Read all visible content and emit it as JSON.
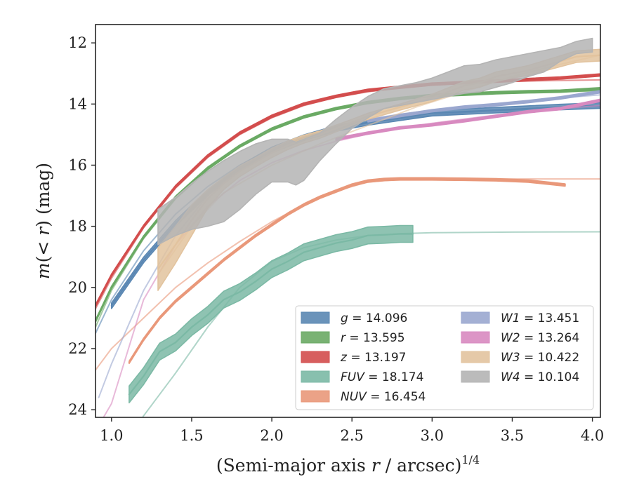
{
  "chart_data": {
    "type": "line",
    "xlabel": "(Semi-major axis r / arcsec)",
    "xlabel_exponent": "1/4",
    "ylabel": "m(< r) (mag)",
    "xlim": [
      0.9,
      4.05
    ],
    "ylim": [
      24.25,
      11.4
    ],
    "y_inverted": true,
    "xticks": [
      "1.0",
      "1.5",
      "2.0",
      "2.5",
      "3.0",
      "3.5",
      "4.0"
    ],
    "yticks": [
      "12",
      "14",
      "16",
      "18",
      "20",
      "22",
      "24"
    ],
    "grid": false,
    "legend_position": "lower-right",
    "legend_columns": 2,
    "series": [
      {
        "key": "g",
        "label": "g = 14.096",
        "color": "#5a87b3",
        "model": {
          "x": [
            0.9,
            1.0,
            1.2,
            1.4,
            1.6,
            1.8,
            2.0,
            2.2,
            2.4,
            2.6,
            2.8,
            3.0,
            3.2,
            3.4,
            3.6,
            3.8,
            4.05
          ],
          "y": [
            21.5,
            20.4,
            18.8,
            17.6,
            16.7,
            16.0,
            15.45,
            15.1,
            14.82,
            14.62,
            14.48,
            14.37,
            14.28,
            14.22,
            14.17,
            14.12,
            14.08
          ]
        },
        "data": {
          "x": [
            1.0,
            1.2,
            1.4,
            1.6,
            1.8,
            2.0,
            2.2,
            2.4,
            2.6,
            2.8,
            3.0,
            3.2,
            3.4,
            3.6,
            3.8,
            4.05
          ],
          "y": [
            20.6,
            19.1,
            17.9,
            16.9,
            16.1,
            15.5,
            15.1,
            14.8,
            14.6,
            14.45,
            14.3,
            14.25,
            14.2,
            14.15,
            14.1,
            14.05
          ],
          "band": 0.18
        }
      },
      {
        "key": "r",
        "label": "r = 13.595",
        "color": "#6aaa64",
        "model": {
          "x": [
            0.9,
            1.0,
            1.2,
            1.4,
            1.6,
            1.8,
            2.0,
            2.2,
            2.4,
            2.6,
            2.8,
            3.0,
            3.2,
            3.4,
            3.6,
            3.8,
            4.05
          ],
          "y": [
            21.3,
            20.1,
            18.4,
            17.1,
            16.15,
            15.4,
            14.85,
            14.45,
            14.17,
            13.97,
            13.83,
            13.73,
            13.66,
            13.62,
            13.6,
            13.59,
            13.58
          ]
        },
        "data": {
          "x": [
            0.9,
            1.0,
            1.2,
            1.4,
            1.6,
            1.8,
            2.0,
            2.2,
            2.4,
            2.6,
            2.8,
            3.0,
            3.2,
            3.4,
            3.6,
            3.8,
            4.05
          ],
          "y": [
            21.1,
            20.0,
            18.35,
            17.05,
            16.1,
            15.38,
            14.82,
            14.42,
            14.15,
            13.95,
            13.82,
            13.72,
            13.68,
            13.63,
            13.6,
            13.58,
            13.5
          ],
          "band": 0.08
        }
      },
      {
        "key": "z",
        "label": "z = 13.197",
        "color": "#d34d4d",
        "model": {
          "x": [
            0.9,
            1.0,
            1.2,
            1.4,
            1.6,
            1.8,
            2.0,
            2.2,
            2.4,
            2.6,
            2.8,
            3.0,
            3.2,
            3.4,
            3.6,
            3.8,
            4.05
          ],
          "y": [
            20.7,
            19.7,
            18.05,
            16.75,
            15.75,
            15.0,
            14.45,
            14.05,
            13.78,
            13.6,
            13.47,
            13.38,
            13.32,
            13.28,
            13.25,
            13.23,
            13.21
          ]
        },
        "data": {
          "x": [
            0.9,
            1.0,
            1.2,
            1.4,
            1.6,
            1.8,
            2.0,
            2.2,
            2.4,
            2.6,
            2.8,
            3.0,
            3.2,
            3.4,
            3.6,
            3.8,
            4.05
          ],
          "y": [
            20.6,
            19.6,
            18.0,
            16.7,
            15.7,
            14.95,
            14.4,
            14.0,
            13.75,
            13.55,
            13.45,
            13.35,
            13.3,
            13.25,
            13.2,
            13.15,
            13.05
          ],
          "band": 0.08
        }
      },
      {
        "key": "fuv",
        "label": "FUV = 18.174",
        "color": "#7bb9a5",
        "model": {
          "x": [
            0.9,
            1.0,
            1.1,
            1.2,
            1.4,
            1.6,
            1.8,
            2.0,
            2.2,
            2.4,
            2.6,
            2.8,
            3.0,
            3.5,
            4.05
          ],
          "y": [
            26.5,
            25.8,
            25.0,
            24.2,
            22.8,
            21.3,
            20.0,
            19.15,
            18.7,
            18.45,
            18.3,
            18.24,
            18.21,
            18.19,
            18.18
          ]
        },
        "data": {
          "x": [
            1.11,
            1.2,
            1.3,
            1.4,
            1.5,
            1.6,
            1.7,
            1.8,
            1.9,
            2.0,
            2.1,
            2.2,
            2.3,
            2.4,
            2.5,
            2.6,
            2.7,
            2.8,
            2.88
          ],
          "y": [
            23.5,
            22.9,
            22.1,
            21.8,
            21.3,
            20.9,
            20.4,
            20.15,
            19.8,
            19.4,
            19.15,
            18.85,
            18.7,
            18.55,
            18.45,
            18.3,
            18.28,
            18.25,
            18.25
          ],
          "band": 0.55
        }
      },
      {
        "key": "nuv",
        "label": "NUV = 16.454",
        "color": "#e9987a",
        "model": {
          "x": [
            0.9,
            1.0,
            1.2,
            1.4,
            1.6,
            1.8,
            2.0,
            2.2,
            2.4,
            2.6,
            2.8,
            3.0,
            3.2,
            3.5,
            4.05
          ],
          "y": [
            22.7,
            22.0,
            21.0,
            20.0,
            19.2,
            18.5,
            17.85,
            17.3,
            16.85,
            16.55,
            16.47,
            16.45,
            16.45,
            16.45,
            16.45
          ]
        },
        "data": {
          "x": [
            1.11,
            1.2,
            1.3,
            1.4,
            1.5,
            1.6,
            1.7,
            1.8,
            1.9,
            2.0,
            2.1,
            2.2,
            2.3,
            2.4,
            2.5,
            2.6,
            2.7,
            2.8,
            3.0,
            3.2,
            3.4,
            3.6,
            3.83
          ],
          "y": [
            22.45,
            21.7,
            21.0,
            20.45,
            20.0,
            19.55,
            19.1,
            18.7,
            18.3,
            17.95,
            17.6,
            17.3,
            17.05,
            16.85,
            16.65,
            16.52,
            16.47,
            16.45,
            16.45,
            16.46,
            16.48,
            16.52,
            16.65
          ],
          "band": 0.08
        }
      },
      {
        "key": "w1",
        "label": "W1 = 13.451",
        "color": "#9aa7cf",
        "model": {
          "x": [
            0.92,
            1.0,
            1.2,
            1.4,
            1.6,
            1.8,
            2.0,
            2.2,
            2.4,
            2.6,
            2.8,
            3.0,
            3.2,
            3.4,
            3.6,
            3.8,
            4.05
          ],
          "y": [
            23.6,
            22.5,
            20.1,
            18.3,
            17.0,
            16.1,
            15.5,
            15.05,
            14.72,
            14.5,
            14.33,
            14.2,
            14.1,
            14.0,
            13.9,
            13.8,
            13.7
          ]
        },
        "data": {
          "x": [
            2.6,
            2.8,
            3.0,
            3.2,
            3.4,
            3.6,
            3.8,
            4.05
          ],
          "y": [
            14.55,
            14.38,
            14.22,
            14.1,
            14.02,
            13.92,
            13.8,
            13.6
          ],
          "band": 0.08
        }
      },
      {
        "key": "w2",
        "label": "W2 = 13.264",
        "color": "#d88ac0",
        "model": {
          "x": [
            0.95,
            1.0,
            1.2,
            1.4,
            1.6,
            1.8,
            2.0,
            2.2,
            2.4,
            2.6,
            2.8,
            3.0,
            3.2,
            3.4,
            3.6,
            3.8,
            4.05
          ],
          "y": [
            24.25,
            23.8,
            20.4,
            18.6,
            17.35,
            16.5,
            15.92,
            15.52,
            15.22,
            14.98,
            14.8,
            14.63,
            14.49,
            14.36,
            14.25,
            14.15,
            14.05
          ]
        },
        "data": {
          "x": [
            2.4,
            2.6,
            2.8,
            3.0,
            3.2,
            3.4,
            3.6,
            3.8,
            4.05
          ],
          "y": [
            15.15,
            14.95,
            14.78,
            14.68,
            14.55,
            14.4,
            14.25,
            14.15,
            13.88
          ],
          "band": 0.08
        }
      },
      {
        "key": "w3",
        "label": "W3 = 10.422",
        "color": "#e2c39e",
        "model": {
          "x": [
            1.3,
            1.5,
            1.7,
            2.0,
            2.3,
            2.6,
            2.9,
            3.2,
            3.5,
            3.8,
            4.05
          ],
          "y": [
            19.5,
            18.0,
            16.9,
            16.0,
            15.3,
            14.7,
            14.1,
            13.6,
            13.1,
            12.7,
            12.4
          ]
        },
        "data": {
          "x": [
            1.29,
            1.4,
            1.5,
            1.6,
            1.7,
            1.8,
            1.9,
            2.0,
            2.1,
            2.2,
            2.3,
            2.4,
            2.5,
            2.6,
            2.7,
            2.8,
            2.9,
            3.0,
            3.1,
            3.2,
            3.3,
            3.4,
            3.5,
            3.6,
            3.7,
            3.8,
            3.9,
            4.05
          ],
          "y": [
            19.4,
            18.6,
            17.8,
            17.1,
            16.6,
            16.2,
            15.9,
            15.6,
            15.35,
            15.15,
            15.0,
            14.8,
            14.6,
            14.4,
            14.25,
            14.1,
            13.95,
            13.8,
            13.6,
            13.4,
            13.3,
            13.1,
            13.0,
            12.9,
            12.75,
            12.6,
            12.45,
            12.4
          ],
          "band_y": [
            1.4,
            1.2,
            1.0,
            0.6,
            0.4,
            0.35,
            0.3,
            0.3,
            0.28,
            0.26,
            0.24,
            0.22,
            0.2,
            0.2,
            0.2,
            0.2,
            0.22,
            0.24,
            0.26,
            0.28,
            0.3,
            0.3,
            0.3,
            0.32,
            0.34,
            0.36,
            0.38,
            0.38
          ]
        }
      },
      {
        "key": "w4",
        "label": "W4 = 10.104",
        "color": "#b4b4b4",
        "data": {
          "x": [
            1.29,
            1.4,
            1.5,
            1.6,
            1.7,
            1.8,
            1.9,
            2.0,
            2.1,
            2.15,
            2.2,
            2.3,
            2.4,
            2.5,
            2.6,
            2.7,
            2.8,
            2.9,
            3.0,
            3.1,
            3.2,
            3.3,
            3.4,
            3.5,
            3.6,
            3.7,
            3.8,
            3.9,
            4.0
          ],
          "y_top": [
            17.45,
            17.05,
            16.6,
            16.2,
            15.85,
            15.55,
            15.3,
            15.15,
            15.15,
            15.25,
            15.15,
            14.95,
            14.5,
            14.1,
            13.75,
            13.5,
            13.4,
            13.3,
            13.15,
            12.95,
            12.75,
            12.7,
            12.55,
            12.45,
            12.35,
            12.25,
            12.15,
            11.95,
            11.85
          ],
          "y_bottom": [
            18.6,
            18.3,
            18.1,
            18.0,
            17.85,
            17.45,
            16.95,
            16.55,
            16.55,
            16.65,
            16.5,
            15.85,
            15.3,
            14.8,
            14.45,
            14.15,
            14.05,
            13.95,
            13.85,
            13.75,
            13.65,
            13.6,
            13.45,
            13.3,
            13.1,
            12.95,
            12.6,
            12.35,
            12.3
          ]
        }
      }
    ]
  }
}
